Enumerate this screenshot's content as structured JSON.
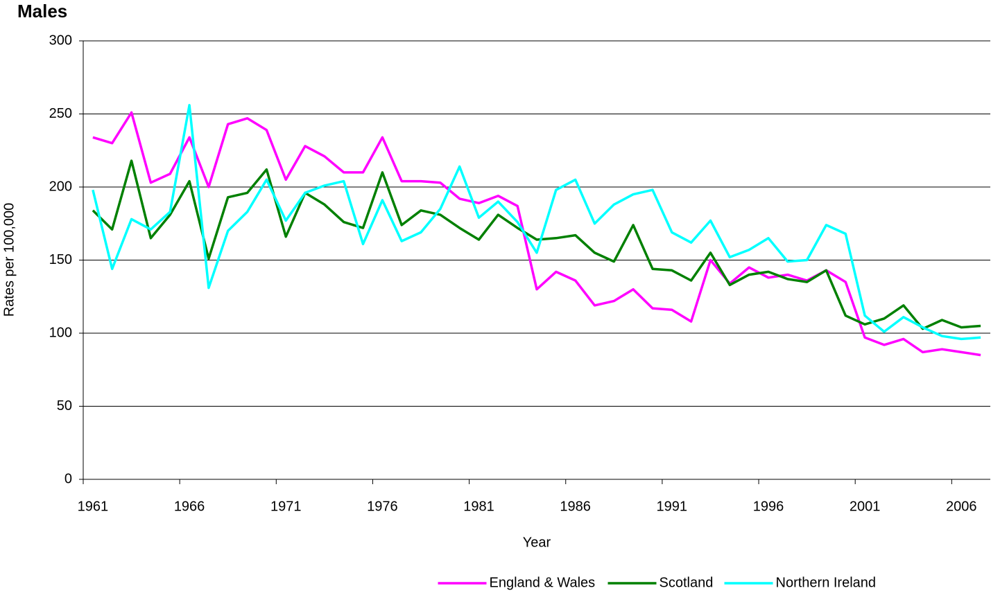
{
  "chart_data": {
    "type": "line",
    "title": "Males",
    "y_label": "Rates per 100,000",
    "x_label": "Year",
    "categories": [
      "1961",
      null,
      null,
      null,
      null,
      "1966",
      null,
      null,
      null,
      null,
      "1971",
      null,
      null,
      null,
      null,
      "1976",
      null,
      null,
      null,
      null,
      "1981",
      null,
      null,
      null,
      null,
      "1986",
      null,
      null,
      null,
      null,
      "1991",
      null,
      null,
      null,
      null,
      "1996",
      null,
      null,
      null,
      null,
      "2001",
      null,
      null,
      null,
      null,
      "2006",
      null
    ],
    "series": [
      {
        "name": "England & Wales",
        "color": "#ff00ff",
        "values": [
          234,
          230,
          251,
          203,
          209,
          234,
          200,
          243,
          247,
          239,
          205,
          228,
          221,
          210,
          210,
          234,
          204,
          204,
          203,
          192,
          189,
          194,
          187,
          130,
          142,
          136,
          119,
          122,
          130,
          117,
          116,
          108,
          150,
          134,
          145,
          138,
          140,
          136,
          143,
          135,
          97,
          92,
          96,
          87,
          89,
          87,
          85
        ]
      },
      {
        "name": "Scotland",
        "color": "#008000",
        "values": [
          184,
          171,
          218,
          165,
          181,
          204,
          151,
          193,
          196,
          212,
          166,
          196,
          188,
          176,
          172,
          210,
          174,
          184,
          181,
          172,
          164,
          181,
          172,
          164,
          165,
          167,
          155,
          149,
          174,
          144,
          143,
          136,
          155,
          133,
          140,
          142,
          137,
          135,
          143,
          112,
          106,
          110,
          119,
          103,
          109,
          104,
          105
        ]
      },
      {
        "name": "Northern Ireland",
        "color": "#00ffff",
        "values": [
          198,
          144,
          178,
          171,
          183,
          256,
          131,
          170,
          183,
          205,
          177,
          196,
          201,
          204,
          161,
          191,
          163,
          169,
          185,
          214,
          179,
          190,
          176,
          155,
          198,
          205,
          175,
          188,
          195,
          198,
          169,
          162,
          177,
          152,
          157,
          165,
          149,
          150,
          174,
          168,
          112,
          101,
          111,
          104,
          98,
          96,
          97
        ]
      }
    ],
    "ylim": [
      0,
      300
    ],
    "yticks": [
      0,
      50,
      100,
      150,
      200,
      250,
      300
    ],
    "grid": true,
    "legend": "bottom"
  }
}
